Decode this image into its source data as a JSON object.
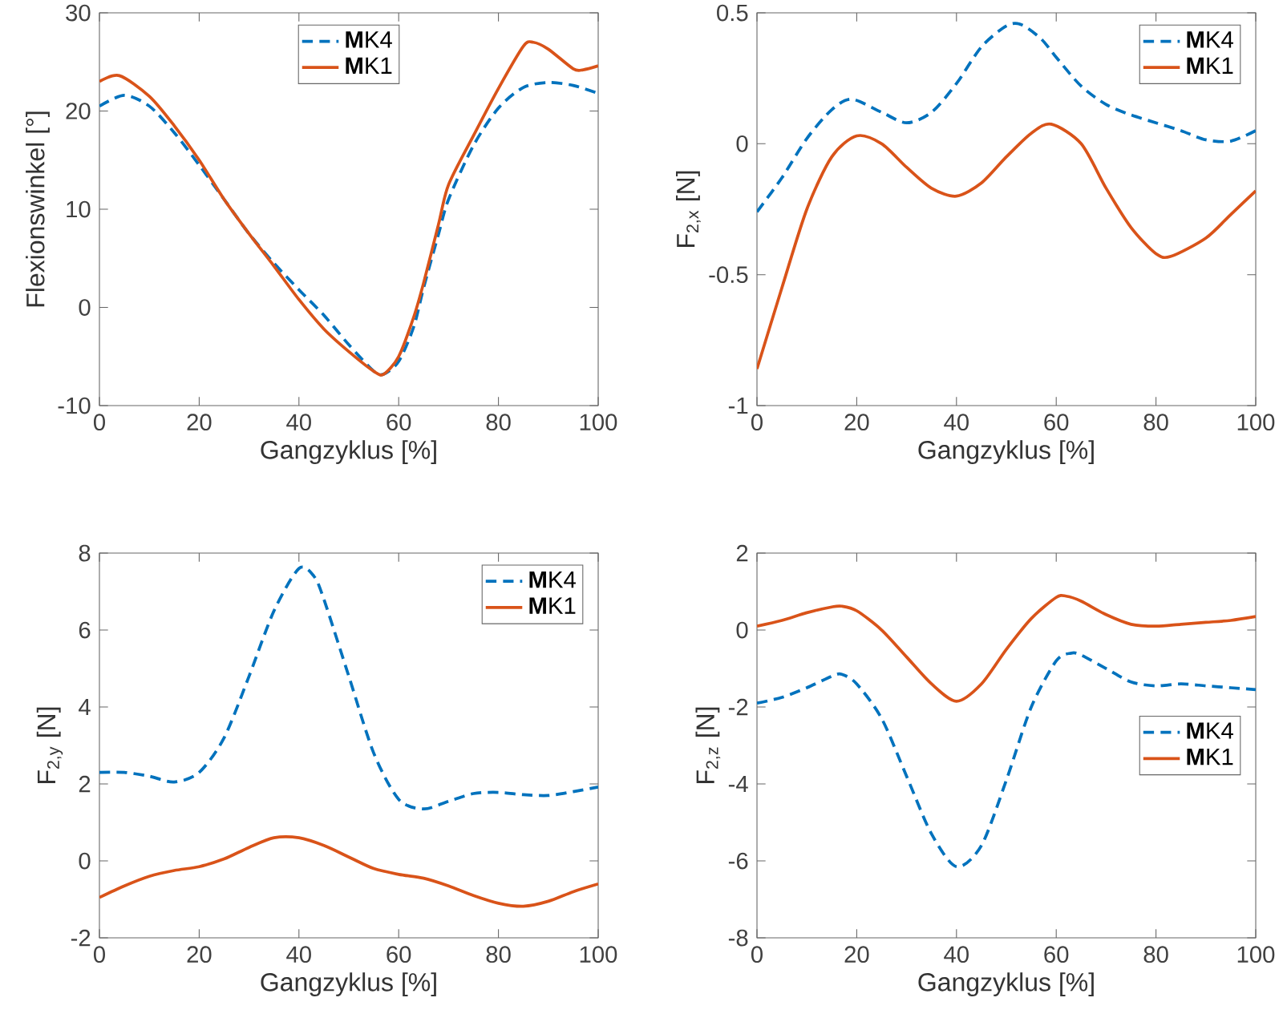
{
  "chart_data": [
    {
      "type": "line",
      "xlabel": "Gangzyklus [%]",
      "ylabel": "Flexionswinkel [°]",
      "xlim": [
        0,
        100
      ],
      "ylim": [
        -10,
        30
      ],
      "xticks": [
        0,
        20,
        40,
        60,
        80,
        100
      ],
      "yticks": [
        -10,
        0,
        10,
        20,
        30
      ],
      "legend": "top",
      "series": [
        {
          "name": "**M**K4",
          "color": "#0072bd",
          "line_style": "dashed",
          "x": [
            0,
            5,
            10,
            15,
            20,
            25,
            30,
            35,
            40,
            45,
            50,
            55,
            57,
            60,
            63,
            65,
            68,
            70,
            75,
            80,
            85,
            90,
            95,
            100
          ],
          "values": [
            20.5,
            21.6,
            20.5,
            17.8,
            14.5,
            11,
            7.5,
            4.5,
            1.8,
            -0.8,
            -3.8,
            -6.5,
            -6.8,
            -5.5,
            -2,
            2,
            7.5,
            11,
            16.5,
            20.3,
            22.4,
            22.9,
            22.6,
            21.8
          ]
        },
        {
          "name": "**M**K1",
          "color": "#d95319",
          "line_style": "solid",
          "x": [
            0,
            4,
            10,
            15,
            20,
            25,
            30,
            35,
            40,
            45,
            50,
            55,
            57,
            60,
            63,
            65,
            68,
            70,
            75,
            80,
            85,
            87,
            90,
            95,
            97,
            100
          ],
          "values": [
            23,
            23.6,
            21.5,
            18.5,
            15,
            11,
            7.5,
            4.2,
            0.8,
            -2.2,
            -4.5,
            -6.5,
            -6.8,
            -5,
            -1,
            2.5,
            8.5,
            12.5,
            17.5,
            22.3,
            26.6,
            27,
            26.3,
            24.3,
            24.2,
            24.6
          ]
        }
      ]
    },
    {
      "type": "line",
      "xlabel": "Gangzyklus [%]",
      "ylabel": "F$_{2,x}$ [N]",
      "xlim": [
        0,
        100
      ],
      "ylim": [
        -1,
        0.5
      ],
      "xticks": [
        0,
        20,
        40,
        60,
        80,
        100
      ],
      "yticks": [
        -1,
        -0.5,
        0,
        0.5
      ],
      "legend": "top right",
      "series": [
        {
          "name": "**M**K4",
          "color": "#0072bd",
          "line_style": "dashed",
          "x": [
            0,
            5,
            10,
            15,
            19,
            25,
            30,
            35,
            40,
            45,
            50,
            53,
            57,
            60,
            65,
            70,
            75,
            80,
            85,
            90,
            95,
            100
          ],
          "values": [
            -0.26,
            -0.13,
            0.02,
            0.13,
            0.17,
            0.12,
            0.08,
            0.12,
            0.23,
            0.37,
            0.45,
            0.455,
            0.4,
            0.33,
            0.22,
            0.15,
            0.11,
            0.08,
            0.05,
            0.015,
            0.01,
            0.05
          ]
        },
        {
          "name": "**M**K1",
          "color": "#d95319",
          "line_style": "solid",
          "x": [
            0,
            5,
            10,
            15,
            20,
            25,
            30,
            35,
            40,
            45,
            50,
            55,
            59,
            65,
            70,
            75,
            80,
            83,
            90,
            95,
            100
          ],
          "values": [
            -0.86,
            -0.55,
            -0.25,
            -0.05,
            0.03,
            0.0,
            -0.09,
            -0.17,
            -0.2,
            -0.15,
            -0.05,
            0.04,
            0.075,
            0.0,
            -0.17,
            -0.32,
            -0.42,
            -0.43,
            -0.36,
            -0.27,
            -0.18
          ]
        }
      ]
    },
    {
      "type": "line",
      "xlabel": "Gangzyklus [%]",
      "ylabel": "F$_{2,y}$ [N]",
      "xlim": [
        0,
        100
      ],
      "ylim": [
        -2,
        8
      ],
      "xticks": [
        0,
        20,
        40,
        60,
        80,
        100
      ],
      "yticks": [
        -2,
        0,
        2,
        4,
        6,
        8
      ],
      "legend": "top right",
      "series": [
        {
          "name": "**M**K4",
          "color": "#0072bd",
          "line_style": "dashed",
          "x": [
            0,
            5,
            10,
            15,
            20,
            25,
            30,
            35,
            40,
            43,
            45,
            50,
            55,
            60,
            65,
            70,
            75,
            80,
            85,
            90,
            95,
            100
          ],
          "values": [
            2.3,
            2.3,
            2.2,
            2.05,
            2.3,
            3.2,
            4.8,
            6.5,
            7.6,
            7.4,
            6.8,
            4.8,
            2.8,
            1.6,
            1.35,
            1.55,
            1.75,
            1.78,
            1.72,
            1.7,
            1.8,
            1.92
          ]
        },
        {
          "name": "**M**K1",
          "color": "#d95319",
          "line_style": "solid",
          "x": [
            0,
            5,
            10,
            15,
            20,
            25,
            30,
            35,
            40,
            45,
            50,
            55,
            60,
            65,
            70,
            75,
            80,
            85,
            90,
            95,
            100
          ],
          "values": [
            -0.95,
            -0.65,
            -0.4,
            -0.25,
            -0.15,
            0.05,
            0.35,
            0.6,
            0.6,
            0.4,
            0.1,
            -0.2,
            -0.35,
            -0.45,
            -0.65,
            -0.9,
            -1.1,
            -1.18,
            -1.05,
            -0.8,
            -0.6
          ]
        }
      ]
    },
    {
      "type": "line",
      "xlabel": "Gangzyklus [%]",
      "ylabel": "F$_{2,z}$ [N]",
      "xlim": [
        0,
        100
      ],
      "ylim": [
        -8,
        2
      ],
      "xticks": [
        0,
        20,
        40,
        60,
        80,
        100
      ],
      "yticks": [
        -8,
        -6,
        -4,
        -2,
        0,
        2
      ],
      "legend": "right",
      "series": [
        {
          "name": "**M**K4",
          "color": "#0072bd",
          "line_style": "dashed",
          "x": [
            0,
            5,
            10,
            15,
            17,
            20,
            25,
            30,
            35,
            40,
            45,
            50,
            55,
            60,
            63,
            65,
            70,
            75,
            80,
            85,
            90,
            95,
            100
          ],
          "values": [
            -1.9,
            -1.75,
            -1.5,
            -1.2,
            -1.15,
            -1.4,
            -2.3,
            -3.8,
            -5.3,
            -6.15,
            -5.6,
            -3.9,
            -2.0,
            -0.8,
            -0.6,
            -0.65,
            -1.0,
            -1.35,
            -1.45,
            -1.4,
            -1.45,
            -1.5,
            -1.55
          ]
        },
        {
          "name": "**M**K1",
          "color": "#d95319",
          "line_style": "solid",
          "x": [
            0,
            5,
            10,
            15,
            17,
            20,
            25,
            30,
            35,
            40,
            45,
            50,
            55,
            60,
            62,
            65,
            70,
            75,
            80,
            85,
            90,
            95,
            100
          ],
          "values": [
            0.1,
            0.25,
            0.45,
            0.6,
            0.62,
            0.5,
            0.0,
            -0.7,
            -1.4,
            -1.85,
            -1.4,
            -0.5,
            0.3,
            0.85,
            0.88,
            0.75,
            0.4,
            0.15,
            0.1,
            0.15,
            0.2,
            0.25,
            0.35
          ]
        }
      ]
    }
  ]
}
